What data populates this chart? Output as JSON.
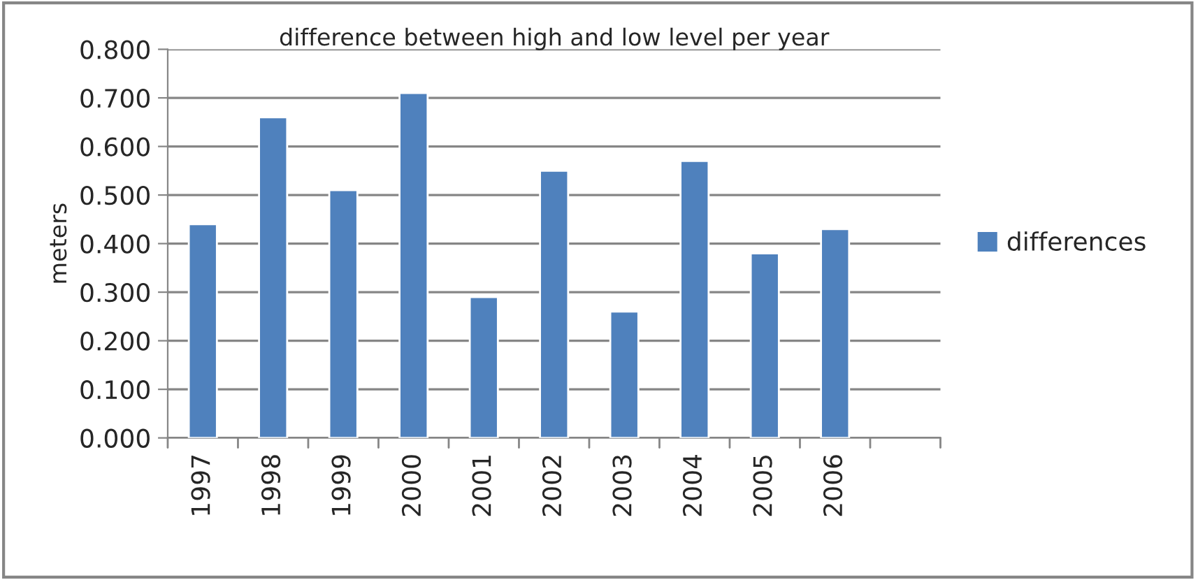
{
  "chart_data": {
    "type": "bar",
    "title": "difference between high and low level per year",
    "ylabel": "meters",
    "categories": [
      "1997",
      "1998",
      "1999",
      "2000",
      "2001",
      "2002",
      "2003",
      "2004",
      "2005",
      "2006",
      null
    ],
    "series": [
      {
        "name": "differences",
        "color": "#4f81bd",
        "values": [
          0.44,
          0.66,
          0.51,
          0.71,
          0.29,
          0.55,
          0.26,
          0.57,
          0.38,
          0.43,
          null
        ]
      }
    ],
    "ylim": [
      0,
      0.8
    ],
    "yticks": [
      {
        "value": 0,
        "label": "0.000"
      },
      {
        "value": 0.1,
        "label": "0.100"
      },
      {
        "value": 0.2,
        "label": "0.200"
      },
      {
        "value": 0.3,
        "label": "0.300"
      },
      {
        "value": 0.4,
        "label": "0.400"
      },
      {
        "value": 0.5,
        "label": "0.500"
      },
      {
        "value": 0.6,
        "label": "0.600"
      },
      {
        "value": 0.7,
        "label": "0.700"
      },
      {
        "value": 0.8,
        "label": "0.800"
      }
    ],
    "grid": "y",
    "legend": "right"
  }
}
